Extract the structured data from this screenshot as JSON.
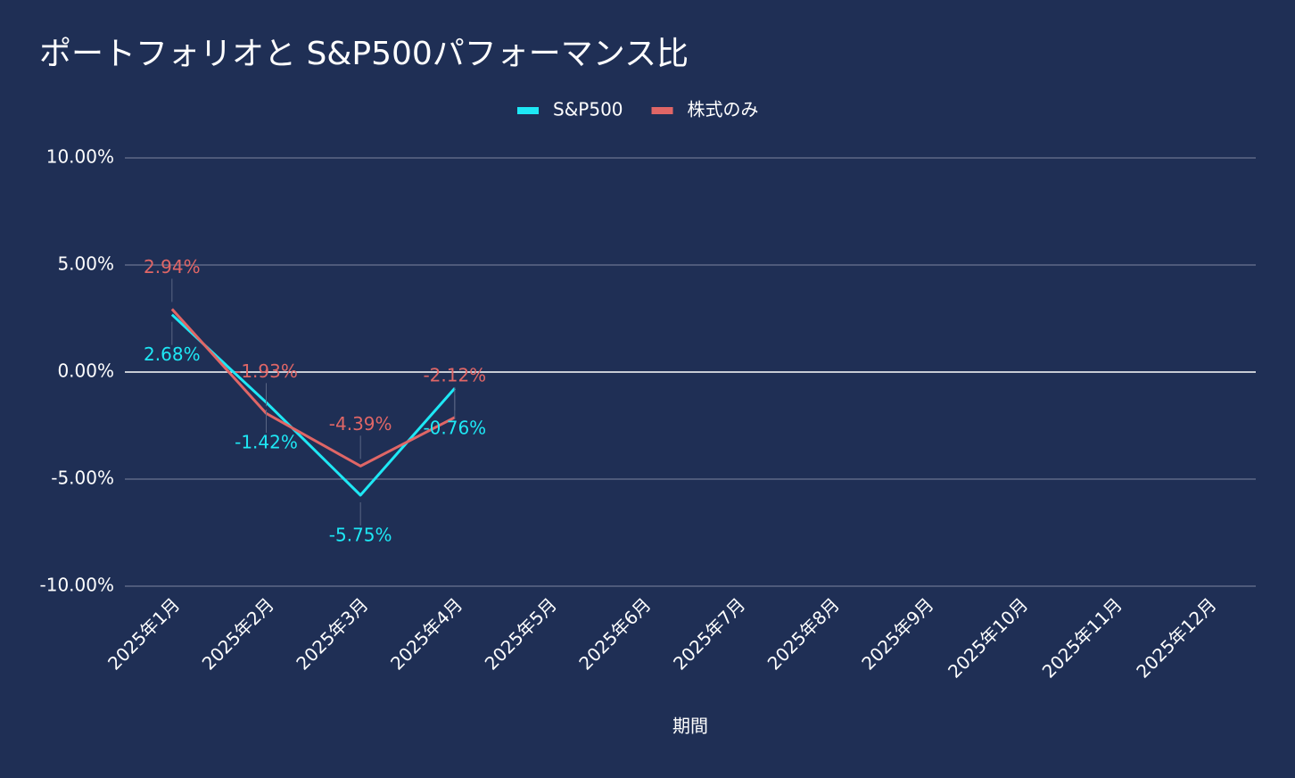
{
  "chart_data": {
    "type": "line",
    "title": "ポートフォリオと S&P500パフォーマンス比",
    "x_label": "期間",
    "categories": [
      "2025年1月",
      "2025年2月",
      "2025年3月",
      "2025年4月",
      "2025年5月",
      "2025年6月",
      "2025年7月",
      "2025年8月",
      "2025年9月",
      "2025年10月",
      "2025年11月",
      "2025年12月"
    ],
    "series": [
      {
        "name": "S&P500",
        "color": "#1ee8f5",
        "values": [
          2.68,
          -1.42,
          -5.75,
          -0.76,
          null,
          null,
          null,
          null,
          null,
          null,
          null,
          null
        ],
        "value_labels": [
          "2.68%",
          "-1.42%",
          "-5.75%",
          "-0.76%",
          null,
          null,
          null,
          null,
          null,
          null,
          null,
          null
        ]
      },
      {
        "name": "株式のみ",
        "color": "#e06666",
        "values": [
          2.94,
          -1.93,
          -4.39,
          -2.12,
          null,
          null,
          null,
          null,
          null,
          null,
          null,
          null
        ],
        "value_labels": [
          "2.94%",
          "-1.93%",
          "-4.39%",
          "-2.12%",
          null,
          null,
          null,
          null,
          null,
          null,
          null,
          null
        ]
      }
    ],
    "ylim": [
      -10,
      10
    ],
    "yticks": [
      {
        "value": -10,
        "label": "-10.00%"
      },
      {
        "value": -5,
        "label": "-5.00%"
      },
      {
        "value": 0,
        "label": "0.00%"
      },
      {
        "value": 5,
        "label": "5.00%"
      },
      {
        "value": 10,
        "label": "10.00%"
      }
    ],
    "grid": true,
    "legend": "top"
  }
}
